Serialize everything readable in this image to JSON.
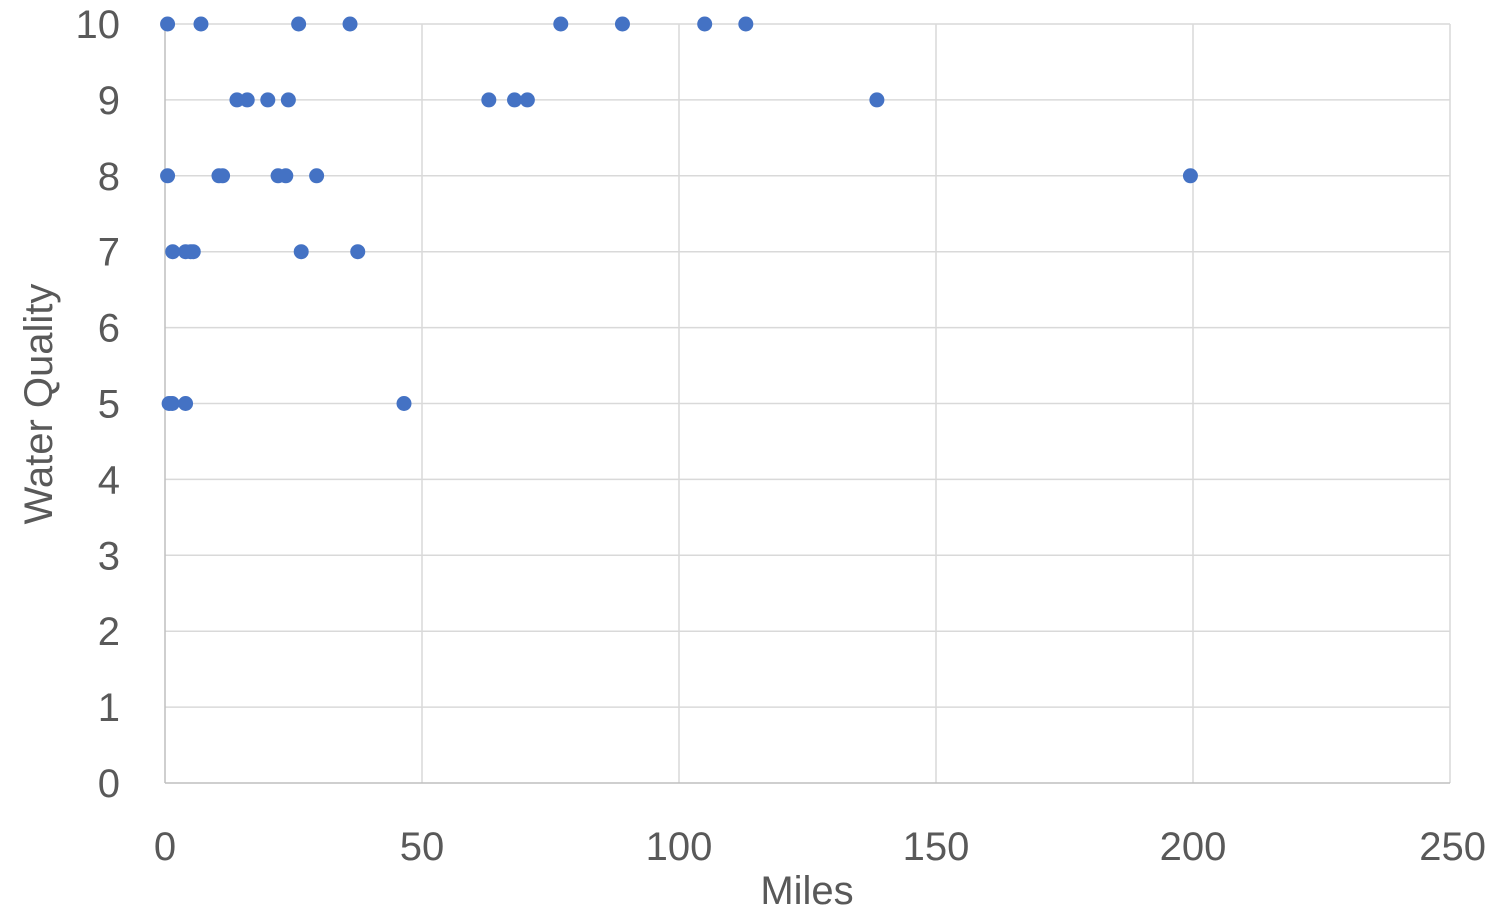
{
  "chart_data": {
    "type": "scatter",
    "xlabel": "Miles",
    "ylabel": "Water Quality",
    "xlim": [
      0,
      250
    ],
    "ylim": [
      0,
      10
    ],
    "x_ticks": [
      "0",
      "50",
      "100",
      "150",
      "200",
      "250"
    ],
    "y_ticks": [
      "0",
      "1",
      "2",
      "3",
      "4",
      "5",
      "6",
      "7",
      "8",
      "9",
      "10"
    ],
    "grid": true,
    "legend": "none",
    "marker_color": "#4472C4",
    "series": [
      {
        "points": [
          {
            "x": 0.5,
            "y": 10
          },
          {
            "x": 7,
            "y": 10
          },
          {
            "x": 26,
            "y": 10
          },
          {
            "x": 36,
            "y": 10
          },
          {
            "x": 77,
            "y": 10
          },
          {
            "x": 89,
            "y": 10
          },
          {
            "x": 105,
            "y": 10
          },
          {
            "x": 113,
            "y": 10
          },
          {
            "x": 14,
            "y": 9
          },
          {
            "x": 16,
            "y": 9
          },
          {
            "x": 20,
            "y": 9
          },
          {
            "x": 24,
            "y": 9
          },
          {
            "x": 63,
            "y": 9
          },
          {
            "x": 68,
            "y": 9
          },
          {
            "x": 70.5,
            "y": 9
          },
          {
            "x": 138.5,
            "y": 9
          },
          {
            "x": 0.5,
            "y": 8
          },
          {
            "x": 10.5,
            "y": 8
          },
          {
            "x": 11.2,
            "y": 8
          },
          {
            "x": 22,
            "y": 8
          },
          {
            "x": 23.5,
            "y": 8
          },
          {
            "x": 29.5,
            "y": 8
          },
          {
            "x": 199.5,
            "y": 8
          },
          {
            "x": 1.5,
            "y": 7
          },
          {
            "x": 4,
            "y": 7
          },
          {
            "x": 5,
            "y": 7
          },
          {
            "x": 5.5,
            "y": 7
          },
          {
            "x": 26.5,
            "y": 7
          },
          {
            "x": 37.5,
            "y": 7
          },
          {
            "x": 0.8,
            "y": 5
          },
          {
            "x": 1.4,
            "y": 5
          },
          {
            "x": 4,
            "y": 5
          },
          {
            "x": 46.5,
            "y": 5
          }
        ]
      }
    ]
  }
}
